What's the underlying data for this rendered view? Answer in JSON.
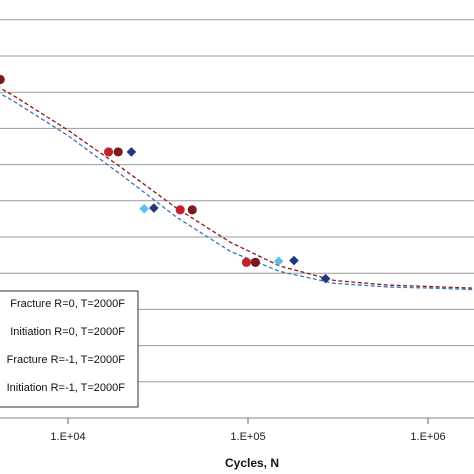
{
  "chart_data": {
    "type": "scatter",
    "xscale": "log",
    "xlim": [
      1000,
      2500000
    ],
    "xlabel": "Cycles, N",
    "xticks": [
      10000,
      100000,
      1000000
    ],
    "xtick_labels": [
      "1.E+04",
      "1.E+05",
      "1.E+06"
    ],
    "grid": "horizontal",
    "legend_position": "lower-left",
    "ylim": [
      0,
      11
    ],
    "series": [
      {
        "name": "Fracture R=0, T=2000F",
        "marker": "circle",
        "color": "#c0232b",
        "points": [
          [
            16800,
            7.35
          ],
          [
            42000,
            5.75
          ],
          [
            98000,
            4.3
          ]
        ]
      },
      {
        "name": "Initiation R=0, T=2000F",
        "marker": "circle",
        "color": "#7a1a1e",
        "points": [
          [
            4200,
            9.35
          ],
          [
            19000,
            7.35
          ],
          [
            49000,
            5.75
          ],
          [
            110000,
            4.3
          ]
        ]
      },
      {
        "name": "Fracture R=-1, T=2000F",
        "marker": "diamond",
        "color": "#5bc0eb",
        "points": [
          [
            26500,
            5.78
          ],
          [
            148000,
            4.33
          ]
        ]
      },
      {
        "name": "Initiation R=-1, T=2000F",
        "marker": "diamond",
        "color": "#1f3a7a",
        "points": [
          [
            22500,
            7.35
          ],
          [
            30000,
            5.8
          ],
          [
            180000,
            4.35
          ],
          [
            270000,
            3.85
          ]
        ]
      }
    ],
    "trendlines": [
      {
        "color": "#8b1a1a",
        "style": "dashed",
        "points": [
          [
            1000,
            10.3
          ],
          [
            2500,
            9.75
          ],
          [
            5000,
            8.9
          ],
          [
            10000,
            7.95
          ],
          [
            20000,
            6.9
          ],
          [
            40000,
            5.8
          ],
          [
            80000,
            4.85
          ],
          [
            150000,
            4.2
          ],
          [
            300000,
            3.8
          ],
          [
            600000,
            3.67
          ],
          [
            1200000,
            3.62
          ],
          [
            2500000,
            3.56
          ]
        ]
      },
      {
        "color": "#3a78b5",
        "style": "dashed",
        "points": [
          [
            1000,
            10.15
          ],
          [
            2500,
            9.6
          ],
          [
            5000,
            8.75
          ],
          [
            10000,
            7.8
          ],
          [
            20000,
            6.7
          ],
          [
            40000,
            5.55
          ],
          [
            80000,
            4.6
          ],
          [
            150000,
            4.05
          ],
          [
            300000,
            3.72
          ],
          [
            600000,
            3.62
          ],
          [
            1200000,
            3.58
          ],
          [
            2500000,
            3.52
          ]
        ]
      }
    ]
  }
}
